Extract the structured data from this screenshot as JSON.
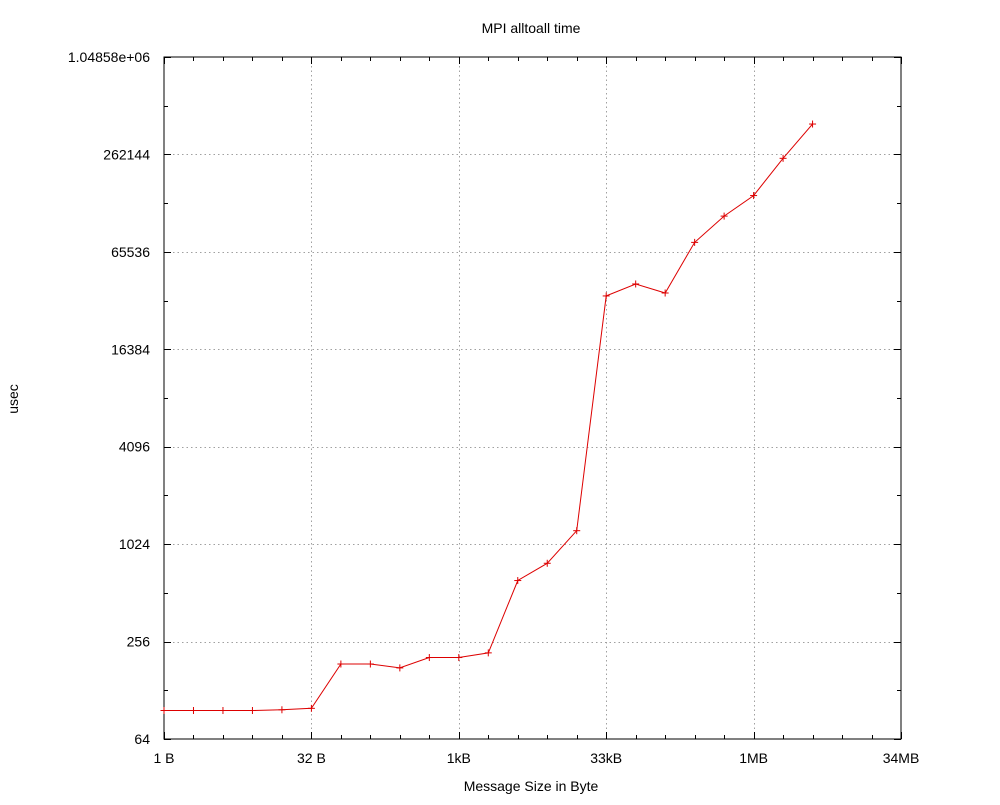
{
  "chart_data": {
    "type": "line",
    "title": "MPI alltoall time",
    "xlabel": "Message Size in Byte",
    "ylabel": "usec",
    "x_scale": "log2",
    "y_scale": "log2",
    "xlim": [
      1,
      33554432
    ],
    "ylim": [
      64,
      1048576
    ],
    "x_ticks": [
      {
        "value": 1,
        "label": "1 B"
      },
      {
        "value": 32,
        "label": "32 B"
      },
      {
        "value": 1024,
        "label": "1kB"
      },
      {
        "value": 32768,
        "label": "33kB"
      },
      {
        "value": 1048576,
        "label": "1MB"
      },
      {
        "value": 33554432,
        "label": "34MB"
      }
    ],
    "y_ticks": [
      {
        "value": 64,
        "label": "64"
      },
      {
        "value": 256,
        "label": "256"
      },
      {
        "value": 1024,
        "label": "1024"
      },
      {
        "value": 4096,
        "label": "4096"
      },
      {
        "value": 16384,
        "label": "16384"
      },
      {
        "value": 65536,
        "label": "65536"
      },
      {
        "value": 262144,
        "label": "262144"
      },
      {
        "value": 1048576,
        "label": "1.04858e+06"
      }
    ],
    "grid": true,
    "line_color": "#dd0000",
    "series": [
      {
        "x": [
          1,
          2,
          4,
          8,
          16,
          32,
          64,
          128,
          256,
          512,
          1024,
          2048,
          4096,
          8192,
          16384,
          32768,
          65536,
          131072,
          262144,
          524288,
          1048576,
          2097152,
          4194304
        ],
        "y": [
          96,
          96,
          96,
          96,
          97,
          99,
          186,
          186,
          176,
          204,
          204,
          218,
          610,
          780,
          1240,
          35000,
          41500,
          36500,
          75000,
          109000,
          146000,
          248000,
          404000
        ]
      }
    ]
  }
}
